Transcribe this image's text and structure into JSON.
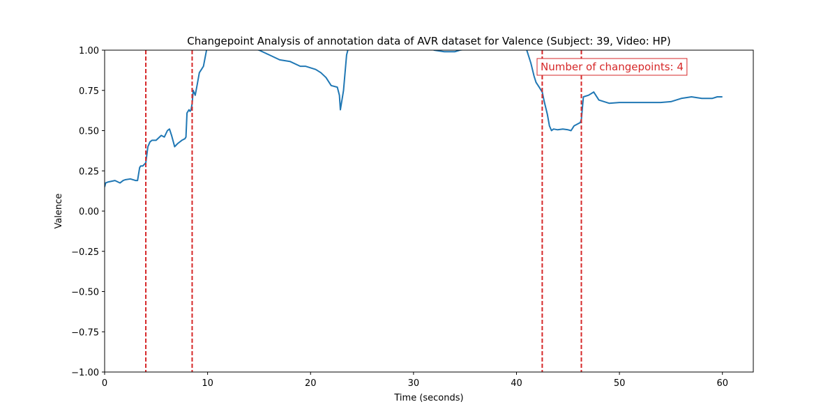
{
  "chart_data": {
    "type": "line",
    "title": "Changepoint Analysis of annotation data of AVR dataset for Valence (Subject: 39, Video: HP)",
    "xlabel": "Time (seconds)",
    "ylabel": "Valence",
    "xlim": [
      0,
      63
    ],
    "ylim": [
      -1.0,
      1.0
    ],
    "x_ticks": [
      0,
      10,
      20,
      30,
      40,
      50,
      60
    ],
    "x_tick_labels": [
      "0",
      "10",
      "20",
      "30",
      "40",
      "50",
      "60"
    ],
    "y_ticks": [
      -1.0,
      -0.75,
      -0.5,
      -0.25,
      0.0,
      0.25,
      0.5,
      0.75,
      1.0
    ],
    "y_tick_labels": [
      "−1.00",
      "−0.75",
      "−0.50",
      "−0.25",
      "0.00",
      "0.25",
      "0.50",
      "0.75",
      "1.00"
    ],
    "grid": false,
    "series": [
      {
        "color": "#1f77b4",
        "x": [
          0,
          0.1,
          0.3,
          1.0,
          1.5,
          1.8,
          2.0,
          2.5,
          3.0,
          3.2,
          3.4,
          3.5,
          3.7,
          4.0,
          4.2,
          4.4,
          4.6,
          5.0,
          5.5,
          5.8,
          6.1,
          6.3,
          6.5,
          6.8,
          7.1,
          7.5,
          7.8,
          7.9,
          8.0,
          8.2,
          8.3,
          8.4,
          8.5,
          8.6,
          8.8,
          9.0,
          9.2,
          9.4,
          9.6,
          9.9,
          10.2,
          12.0,
          15.0,
          16.0,
          17.0,
          18.0,
          19.0,
          19.5,
          20.5,
          21.0,
          21.5,
          22.0,
          22.6,
          22.8,
          22.9,
          23.2,
          23.5,
          23.7,
          24.0,
          30.0,
          32.0,
          33.0,
          34.0,
          34.5,
          40.0,
          41.0,
          41.4,
          41.7,
          41.9,
          42.2,
          42.5,
          42.7,
          43.0,
          43.2,
          43.4,
          43.6,
          44.0,
          44.5,
          45.0,
          45.3,
          45.6,
          46.2,
          46.3,
          46.5,
          47.0,
          47.5,
          48.0,
          49.0,
          50.0,
          52.0,
          54.0,
          55.0,
          56.0,
          57.0,
          58.0,
          59.0,
          59.5,
          60.0
        ],
        "y": [
          0.15,
          0.175,
          0.18,
          0.19,
          0.175,
          0.19,
          0.195,
          0.2,
          0.19,
          0.19,
          0.27,
          0.28,
          0.28,
          0.3,
          0.4,
          0.43,
          0.44,
          0.44,
          0.47,
          0.46,
          0.5,
          0.51,
          0.47,
          0.4,
          0.42,
          0.44,
          0.45,
          0.46,
          0.61,
          0.63,
          0.62,
          0.63,
          0.67,
          0.75,
          0.72,
          0.79,
          0.86,
          0.88,
          0.9,
          1.0,
          1.05,
          1.05,
          1.0,
          0.97,
          0.94,
          0.93,
          0.9,
          0.9,
          0.88,
          0.86,
          0.83,
          0.78,
          0.77,
          0.72,
          0.63,
          0.75,
          0.97,
          1.02,
          1.05,
          1.05,
          1.0,
          0.99,
          0.99,
          1.0,
          1.05,
          1.0,
          0.92,
          0.84,
          0.8,
          0.77,
          0.74,
          0.68,
          0.6,
          0.53,
          0.5,
          0.51,
          0.505,
          0.51,
          0.505,
          0.5,
          0.53,
          0.55,
          0.57,
          0.71,
          0.72,
          0.74,
          0.69,
          0.67,
          0.675,
          0.675,
          0.675,
          0.68,
          0.7,
          0.71,
          0.7,
          0.7,
          0.71,
          0.71
        ]
      }
    ],
    "changepoints": {
      "x": [
        4.0,
        8.5,
        42.5,
        46.3
      ],
      "color": "#d62728",
      "style": "dashed"
    },
    "annotation": {
      "text": "Number of changepoints: 4",
      "color": "#d62728",
      "placement": "top-right"
    }
  }
}
